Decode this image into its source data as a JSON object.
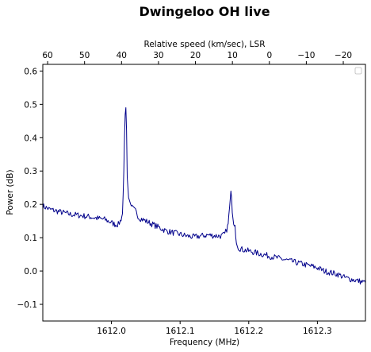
{
  "chart_data": {
    "type": "line",
    "title": "Dwingeloo OH live",
    "xlabel": "Frequency (MHz)",
    "ylabel": "Power (dB)",
    "top_xlabel": "Relative speed (km/sec), LSR",
    "xlim": [
      1611.9,
      1612.37
    ],
    "ylim": [
      -0.15,
      0.62
    ],
    "xticks": [
      {
        "value": 1612.0,
        "label": "1612.0"
      },
      {
        "value": 1612.1,
        "label": "1612.1"
      },
      {
        "value": 1612.2,
        "label": "1612.2"
      },
      {
        "value": 1612.3,
        "label": "1612.3"
      }
    ],
    "yticks": [
      {
        "value": -0.1,
        "label": "−0.1"
      },
      {
        "value": 0.0,
        "label": "0.0"
      },
      {
        "value": 0.1,
        "label": "0.1"
      },
      {
        "value": 0.2,
        "label": "0.2"
      },
      {
        "value": 0.3,
        "label": "0.3"
      },
      {
        "value": 0.4,
        "label": "0.4"
      },
      {
        "value": 0.5,
        "label": "0.5"
      },
      {
        "value": 0.6,
        "label": "0.6"
      }
    ],
    "top_xlim": [
      61.3,
      -26.0
    ],
    "top_xticks": [
      {
        "value": 60,
        "label": "60"
      },
      {
        "value": 50,
        "label": "50"
      },
      {
        "value": 40,
        "label": "40"
      },
      {
        "value": 30,
        "label": "30"
      },
      {
        "value": 20,
        "label": "20"
      },
      {
        "value": 10,
        "label": "10"
      },
      {
        "value": 0,
        "label": "0"
      },
      {
        "value": -10,
        "label": "−10"
      },
      {
        "value": -20,
        "label": "−20"
      }
    ],
    "grid": false,
    "legend": "top-right (empty)",
    "line_color": "#00008b",
    "series": [
      {
        "x": [
          1611.9,
          1611.91,
          1611.92,
          1611.93,
          1611.94,
          1611.95,
          1611.96,
          1611.97,
          1611.98,
          1611.99,
          1611.995,
          1612.0,
          1612.005,
          1612.01,
          1612.013,
          1612.016,
          1612.018,
          1612.019,
          1612.02,
          1612.021,
          1612.022,
          1612.023,
          1612.025,
          1612.028,
          1612.03,
          1612.035,
          1612.04,
          1612.05,
          1612.06,
          1612.07,
          1612.08,
          1612.09,
          1612.1,
          1612.11,
          1612.12,
          1612.13,
          1612.14,
          1612.15,
          1612.16,
          1612.165,
          1612.168,
          1612.17,
          1612.172,
          1612.174,
          1612.175,
          1612.176,
          1612.178,
          1612.18,
          1612.182,
          1612.185,
          1612.19,
          1612.2,
          1612.21,
          1612.22,
          1612.23,
          1612.24,
          1612.25,
          1612.26,
          1612.27,
          1612.28,
          1612.29,
          1612.3,
          1612.31,
          1612.32,
          1612.33,
          1612.34,
          1612.35,
          1612.36,
          1612.37
        ],
        "y": [
          0.195,
          0.185,
          0.18,
          0.175,
          0.17,
          0.168,
          0.165,
          0.162,
          0.158,
          0.155,
          0.15,
          0.145,
          0.14,
          0.14,
          0.15,
          0.17,
          0.3,
          0.4,
          0.47,
          0.49,
          0.42,
          0.28,
          0.22,
          0.2,
          0.19,
          0.18,
          0.16,
          0.15,
          0.14,
          0.13,
          0.12,
          0.115,
          0.11,
          0.105,
          0.102,
          0.105,
          0.108,
          0.106,
          0.105,
          0.11,
          0.125,
          0.14,
          0.19,
          0.24,
          0.22,
          0.175,
          0.14,
          0.13,
          0.09,
          0.07,
          0.065,
          0.06,
          0.055,
          0.05,
          0.045,
          0.04,
          0.035,
          0.03,
          0.025,
          0.02,
          0.015,
          0.01,
          0.0,
          -0.005,
          -0.01,
          -0.02,
          -0.025,
          -0.03,
          -0.035
        ]
      }
    ]
  }
}
